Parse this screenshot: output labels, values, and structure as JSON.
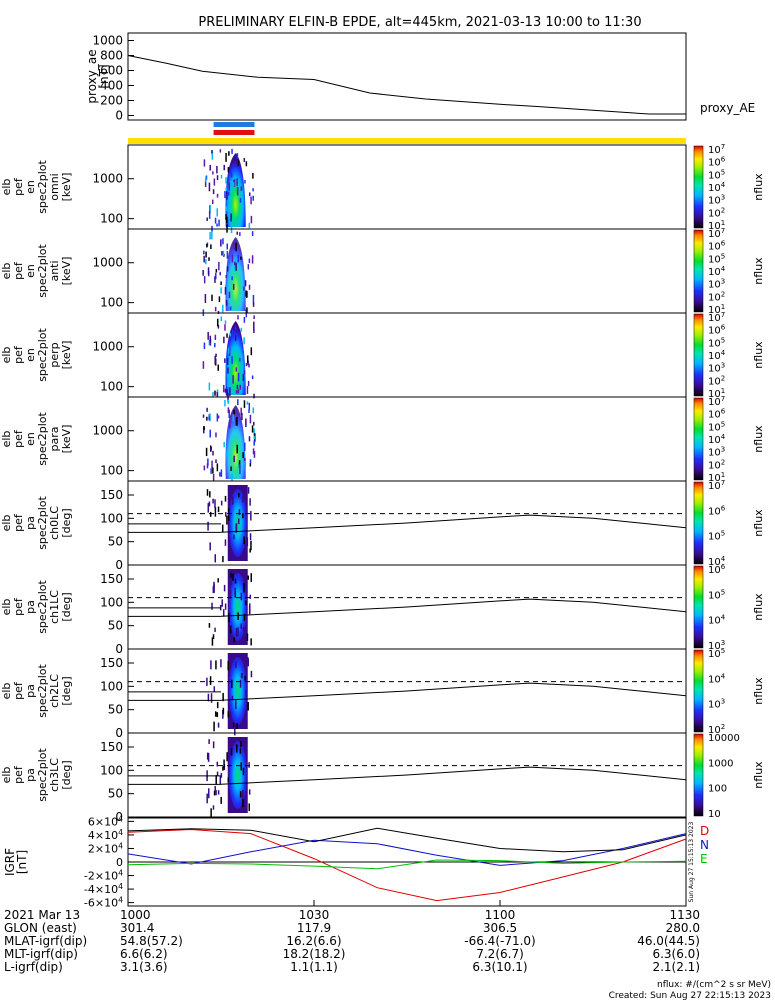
{
  "title": "PRELIMINARY ELFIN-B EPDE, alt=445km, 2021-03-13 10:00 to 11:30",
  "created": "Created: Sun Aug 27 22:15:13 2023",
  "side_stamp": "Sun Aug 27 15:15:13 2023",
  "nflux_units": "nflux: #/(cm^2 s sr MeV)",
  "colors": {
    "spec_colorbar": [
      "#000000",
      "#3a0a8c",
      "#1e30ff",
      "#00b7ff",
      "#00e6b0",
      "#00dd30",
      "#9df000",
      "#ffea00",
      "#ff8c00",
      "#e00000"
    ]
  },
  "chart_data": [
    {
      "type": "line",
      "ylabel_lines": [
        "proxy_ae",
        "[nT]"
      ],
      "ytick_labels": [
        "0",
        "200",
        "400",
        "600",
        "800",
        "1000"
      ],
      "ylim": [
        -60,
        1100
      ],
      "x": [
        10.0,
        10.1,
        10.2,
        10.35,
        10.5,
        10.65,
        10.8,
        11.0,
        11.1,
        11.25,
        11.4,
        11.5
      ],
      "series": [
        {
          "name": "proxy_AE",
          "values": [
            800,
            700,
            590,
            510,
            480,
            300,
            220,
            150,
            120,
            70,
            20,
            20
          ]
        }
      ],
      "bar_blue_x": [
        10.23,
        10.34
      ],
      "bar_red_x": [
        10.23,
        10.34
      ],
      "band_color": "#ffe000"
    },
    {
      "type": "heatmap",
      "ylabel_lines": [
        "elb",
        "pef",
        "en",
        "spec2plot",
        "omni",
        "[keV]"
      ],
      "ytick_labels": [
        "100",
        "1000"
      ],
      "colorbar_ticks": [
        "10^1",
        "10^2",
        "10^3",
        "10^4",
        "10^5",
        "10^6",
        "10^7"
      ],
      "colorbar_label": "nflux"
    },
    {
      "type": "heatmap",
      "ylabel_lines": [
        "elb",
        "pef",
        "en",
        "spec2plot",
        "anti",
        "[keV]"
      ],
      "ytick_labels": [
        "100",
        "1000"
      ],
      "colorbar_ticks": [
        "10^1",
        "10^2",
        "10^3",
        "10^4",
        "10^5",
        "10^6",
        "10^7"
      ],
      "colorbar_label": "nflux"
    },
    {
      "type": "heatmap",
      "ylabel_lines": [
        "elb",
        "pef",
        "en",
        "spec2plot",
        "perp",
        "[keV]"
      ],
      "ytick_labels": [
        "100",
        "1000"
      ],
      "colorbar_ticks": [
        "10^1",
        "10^2",
        "10^3",
        "10^4",
        "10^5",
        "10^6",
        "10^7"
      ],
      "colorbar_label": "nflux"
    },
    {
      "type": "heatmap",
      "ylabel_lines": [
        "elb",
        "pef",
        "en",
        "spec2plot",
        "para",
        "[keV]"
      ],
      "ytick_labels": [
        "100",
        "1000"
      ],
      "colorbar_ticks": [
        "10^1",
        "10^2",
        "10^3",
        "10^4",
        "10^5",
        "10^6",
        "10^7"
      ],
      "colorbar_label": "nflux"
    },
    {
      "type": "heatmap",
      "ylabel_lines": [
        "elb",
        "pef",
        "pa",
        "spec2plot",
        "ch0LC",
        "[deg]"
      ],
      "ytick_labels": [
        "0",
        "50",
        "100",
        "150"
      ],
      "ylim": [
        0,
        180
      ],
      "colorbar_ticks": [
        "10^4",
        "10^5",
        "10^6",
        "10^7"
      ],
      "colorbar_label": "nflux",
      "lc_x": [
        10.25,
        10.5,
        10.75,
        11.0,
        11.08,
        11.25,
        11.5
      ],
      "lc_deg": [
        70,
        80,
        90,
        103,
        107,
        100,
        80
      ],
      "alc_deg": 110
    },
    {
      "type": "heatmap",
      "ylabel_lines": [
        "elb",
        "pef",
        "pa",
        "spec2plot",
        "ch1LC",
        "[deg]"
      ],
      "ytick_labels": [
        "0",
        "50",
        "100",
        "150"
      ],
      "ylim": [
        0,
        180
      ],
      "colorbar_ticks": [
        "10^3",
        "10^4",
        "10^5",
        "10^6"
      ],
      "colorbar_label": "nflux",
      "lc_x": [
        10.25,
        10.5,
        10.75,
        11.0,
        11.08,
        11.25,
        11.5
      ],
      "lc_deg": [
        70,
        80,
        90,
        103,
        107,
        100,
        80
      ],
      "alc_deg": 110
    },
    {
      "type": "heatmap",
      "ylabel_lines": [
        "elb",
        "pef",
        "pa",
        "spec2plot",
        "ch2LC",
        "[deg]"
      ],
      "ytick_labels": [
        "0",
        "50",
        "100",
        "150"
      ],
      "ylim": [
        0,
        180
      ],
      "colorbar_ticks": [
        "10^2",
        "10^3",
        "10^4",
        "10^5"
      ],
      "colorbar_label": "nflux",
      "lc_x": [
        10.25,
        10.5,
        10.75,
        11.0,
        11.08,
        11.25,
        11.5
      ],
      "lc_deg": [
        70,
        80,
        90,
        103,
        107,
        100,
        80
      ],
      "alc_deg": 110
    },
    {
      "type": "heatmap",
      "ylabel_lines": [
        "elb",
        "pef",
        "pa",
        "spec2plot",
        "ch3LC",
        "[deg]"
      ],
      "ytick_labels": [
        "0",
        "50",
        "100",
        "150"
      ],
      "ylim": [
        0,
        180
      ],
      "colorbar_ticks": [
        "10",
        "100",
        "1000",
        "10000"
      ],
      "colorbar_label": "nflux",
      "lc_x": [
        10.25,
        10.5,
        10.75,
        11.0,
        11.08,
        11.25,
        11.5
      ],
      "lc_deg": [
        70,
        80,
        90,
        103,
        107,
        100,
        80
      ],
      "alc_deg": 110
    },
    {
      "type": "line",
      "ylabel_lines": [
        "IGRF",
        "[nT]"
      ],
      "ytick_labels": [
        "-6×10^4",
        "-4×10^4",
        "-2×10^4",
        "0",
        "2×10^4",
        "4×10^4",
        "6×10^4"
      ],
      "ylim": [
        -65000,
        65000
      ],
      "x": [
        10.0,
        10.17,
        10.33,
        10.5,
        10.67,
        10.83,
        11.0,
        11.17,
        11.33,
        11.5
      ],
      "series": [
        {
          "name": "D",
          "color": "#e00000",
          "values": [
            44000,
            48000,
            42000,
            5000,
            -38000,
            -57000,
            -45000,
            -22000,
            0,
            34000
          ]
        },
        {
          "name": "N",
          "color": "#1010d0",
          "values": [
            12000,
            -3000,
            15000,
            32000,
            27000,
            10000,
            -5000,
            2000,
            20000,
            42000
          ]
        },
        {
          "name": "E",
          "color": "#00c000",
          "values": [
            -4000,
            -2000,
            -3000,
            -6000,
            -10000,
            3000,
            2000,
            -2000,
            0,
            1000
          ]
        },
        {
          "name": "",
          "color": "#000000",
          "values": [
            46000,
            49000,
            47000,
            30000,
            50000,
            35000,
            20000,
            15000,
            18000,
            40000
          ]
        }
      ]
    }
  ],
  "xaxis": {
    "row_labels": [
      "2021 Mar 13",
      "GLON (east)",
      "MLAT-igrf(dip)",
      "MLT-igrf(dip)",
      "L-igrf(dip)"
    ],
    "columns": [
      {
        "x": 10.0,
        "values": [
          "1000",
          "301.4",
          "54.8(57.2)",
          "6.6(6.2)",
          "3.1(3.6)"
        ]
      },
      {
        "x": 10.5,
        "values": [
          "1030",
          "117.9",
          "16.2(6.6)",
          "18.2(18.2)",
          "1.1(1.1)"
        ]
      },
      {
        "x": 11.0,
        "values": [
          "1100",
          "306.5",
          "-66.4(-71.0)",
          "7.2(6.7)",
          "6.3(10.1)"
        ]
      },
      {
        "x": 11.5,
        "values": [
          "1130",
          "280.0",
          "46.0(44.5)",
          "6.3(6.0)",
          "2.1(2.1)"
        ]
      }
    ]
  }
}
